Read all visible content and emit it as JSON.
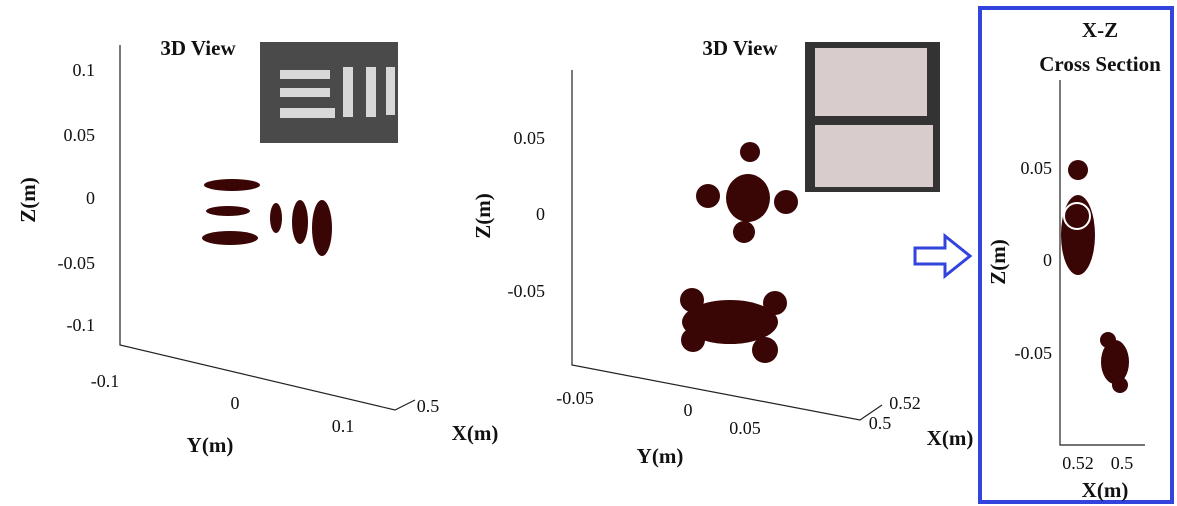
{
  "panels": [
    {
      "title": "3D View",
      "z_label": "Z(m)",
      "y_label": "Y(m)",
      "x_label": "X(m)",
      "z_ticks": [
        "0.1",
        "0.05",
        "0",
        "-0.05",
        "-0.1"
      ],
      "y_ticks": [
        "-0.1",
        "0",
        "0.1"
      ],
      "x_ticks": [
        "0.5"
      ]
    },
    {
      "title": "3D View",
      "z_label": "Z(m)",
      "y_label": "Y(m)",
      "x_label": "X(m)",
      "z_ticks": [
        "0.05",
        "0",
        "-0.05"
      ],
      "y_ticks": [
        "-0.05",
        "0",
        "0.05"
      ],
      "x_ticks": [
        "0.52",
        "0.5"
      ]
    },
    {
      "title": "X-Z",
      "subtitle": "Cross Section",
      "z_label": "Z(m)",
      "x_label": "X(m)",
      "z_ticks": [
        "0.05",
        "0",
        "-0.05"
      ],
      "x_ticks": [
        "0.52",
        "0.5"
      ]
    }
  ]
}
